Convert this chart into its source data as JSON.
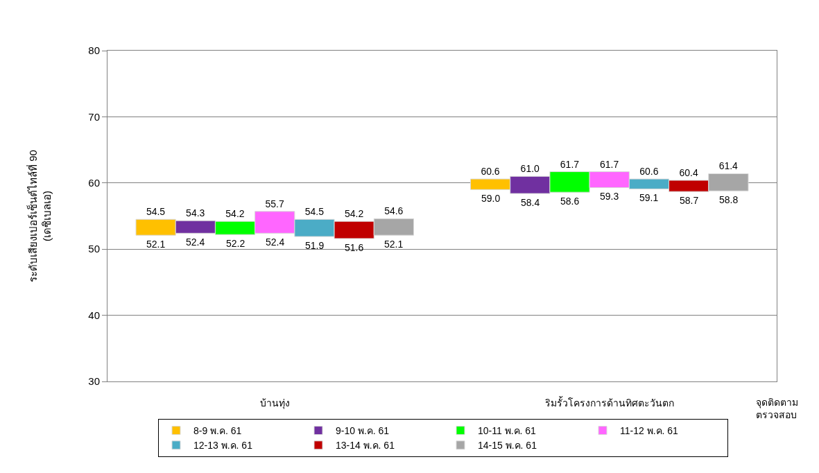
{
  "chart_data": {
    "type": "bar",
    "categories": [
      "บ้านทุ่ง",
      "ริมรั้วโครงการด้านทิศตะวันตก"
    ],
    "xlabel": "จุดติดตาม\nตรวจสอบ",
    "ylabel": "ระดับเสียงเปอร์เซ็นต์ไทล์ที่ 90\n(เดซิเบลเอ)",
    "ylim": [
      30,
      80
    ],
    "yticks": [
      30,
      40,
      50,
      60,
      70,
      80
    ],
    "grid": "y",
    "legend": "bottom",
    "series": [
      {
        "name": "8-9 พ.ค. 61",
        "color": "#ffc000",
        "base": [
          52.1,
          59.0
        ],
        "values": [
          2.4,
          1.6
        ],
        "value_labels": [
          "54.5",
          "60.6"
        ]
      },
      {
        "name": "9-10 พ.ค. 61",
        "color": "#7030a0",
        "base": [
          52.4,
          58.4
        ],
        "values": [
          1.9,
          2.6
        ],
        "value_labels": [
          "54.3",
          "61.0"
        ]
      },
      {
        "name": "10-11 พ.ค. 61",
        "color": "#00ff00",
        "base": [
          52.2,
          58.6
        ],
        "values": [
          2.0,
          3.1
        ],
        "value_labels": [
          "54.2",
          "61.7"
        ]
      },
      {
        "name": "11-12 พ.ค. 61",
        "color": "#ff66ff",
        "base": [
          52.4,
          59.3
        ],
        "values": [
          3.3,
          2.4
        ],
        "value_labels": [
          "55.7",
          "61.7"
        ]
      },
      {
        "name": "12-13 พ.ค. 61",
        "color": "#4bacc6",
        "base": [
          51.9,
          59.1
        ],
        "values": [
          2.6,
          1.5
        ],
        "value_labels": [
          "54.5",
          "60.6"
        ]
      },
      {
        "name": "13-14 พ.ค. 61",
        "color": "#c00000",
        "base": [
          51.6,
          58.7
        ],
        "values": [
          2.6,
          1.7
        ],
        "value_labels": [
          "54.2",
          "60.4"
        ]
      },
      {
        "name": "14-15 พ.ค. 61",
        "color": "#a6a6a6",
        "base": [
          52.1,
          58.8
        ],
        "values": [
          2.5,
          2.6
        ],
        "value_labels": [
          "54.6",
          "61.4"
        ]
      }
    ],
    "annotations": [
      "52.1",
      "59.0",
      "52.4",
      "58.4",
      "52.2",
      "58.6",
      "52.4",
      "59.3",
      "51.9",
      "59.1",
      "51.6",
      "58.7",
      "52.1",
      "58.8"
    ]
  }
}
